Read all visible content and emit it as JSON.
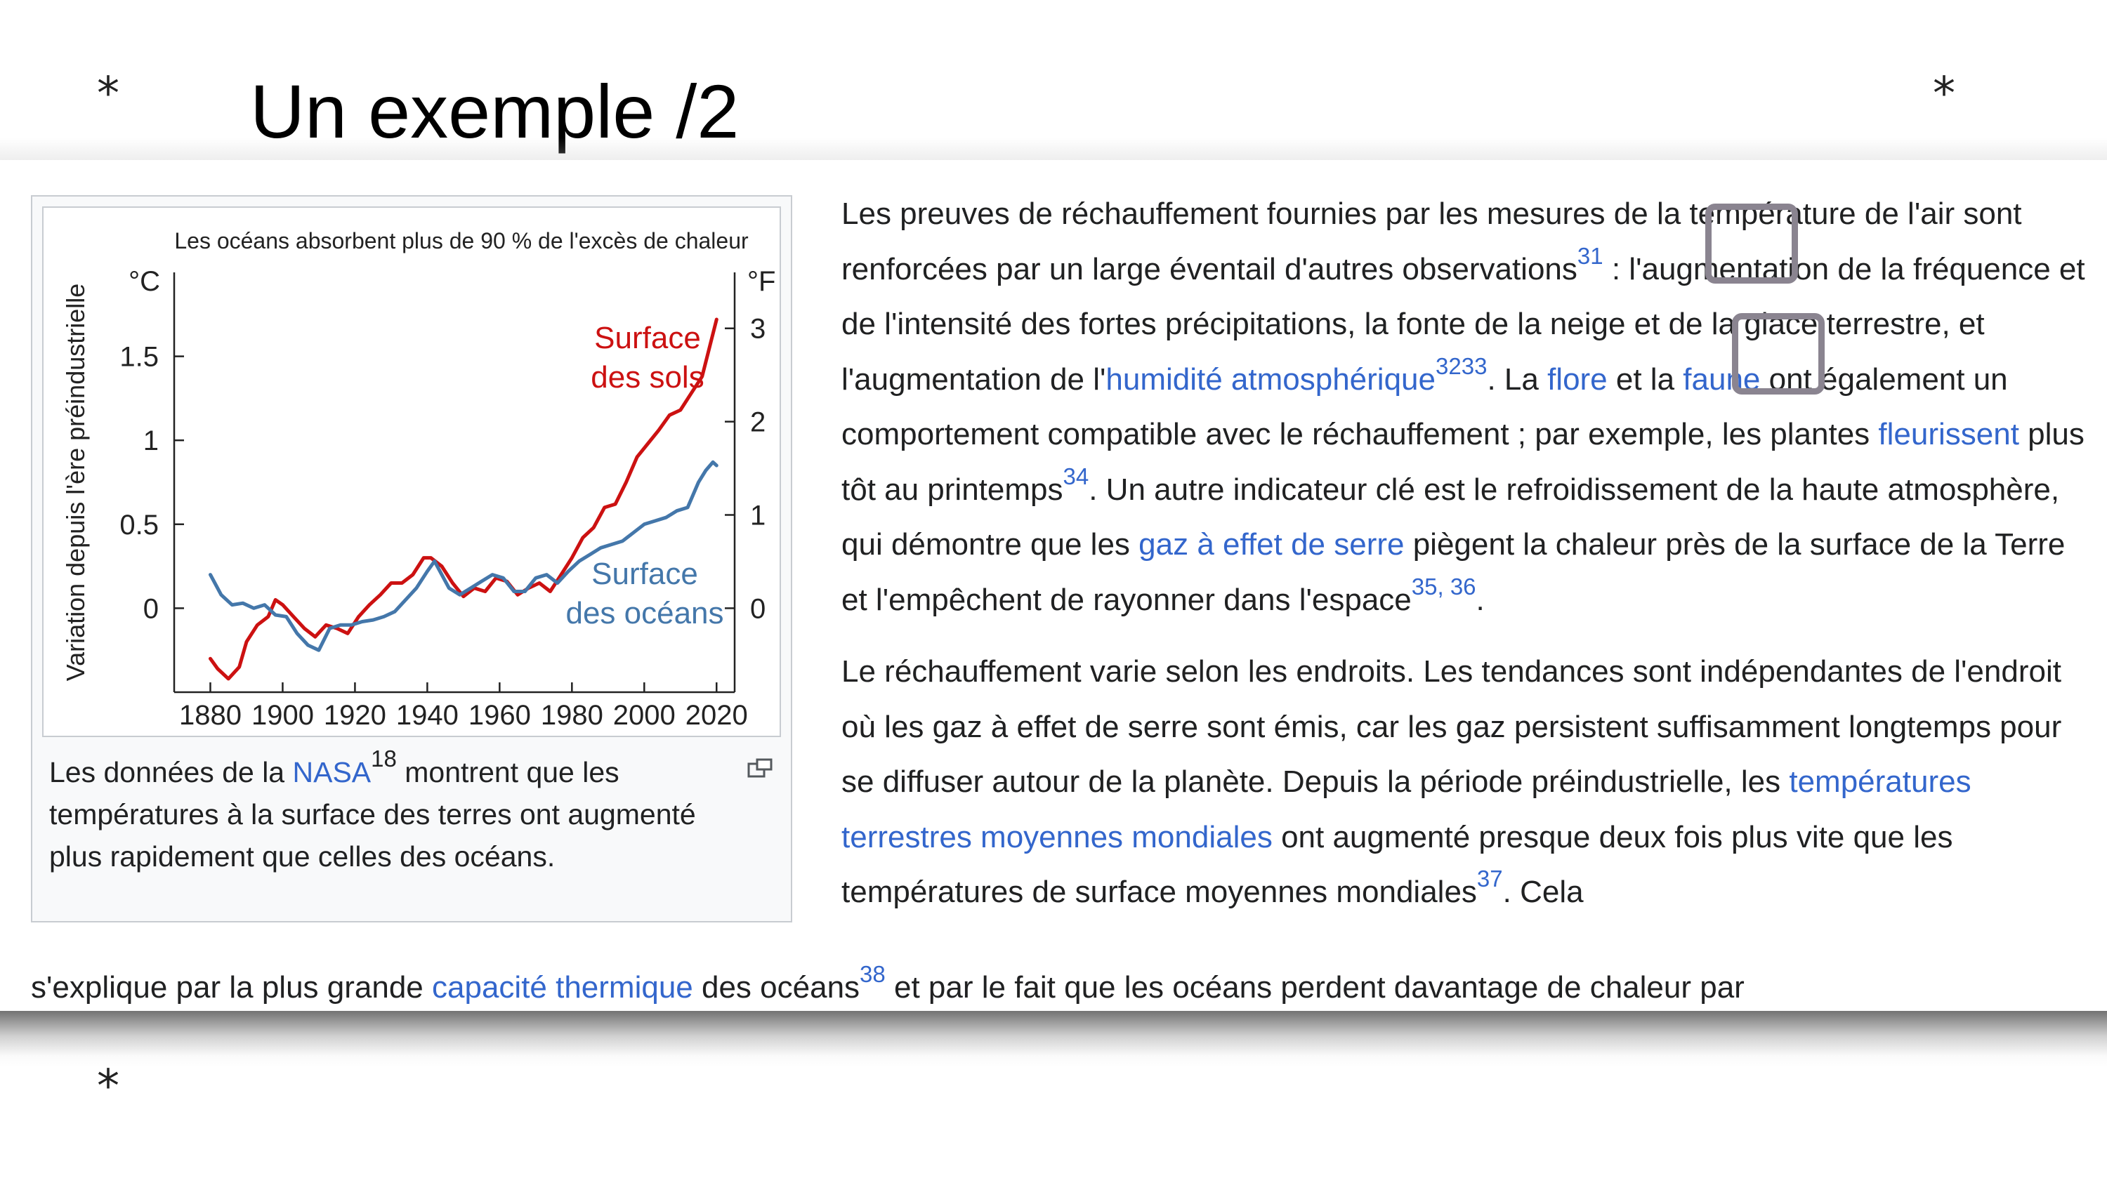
{
  "slide": {
    "title": "Un exemple /2",
    "star_glyph": "*"
  },
  "thumbnail": {
    "chart_data": {
      "type": "line",
      "title": "Les océans absorbent plus de 90 % de l'excès de chaleur",
      "xlabel": "",
      "ylabel": "Variation depuis l'ère préindustrielle",
      "y_unit_left": "°C",
      "y_unit_right": "°F",
      "xlim": [
        1870,
        2025
      ],
      "ylim": [
        -0.5,
        2.0
      ],
      "xticks": [
        "1880",
        "1900",
        "1920",
        "1940",
        "1960",
        "1980",
        "2000",
        "2020"
      ],
      "yticks_left": [
        "0",
        "0.5",
        "1",
        "1.5"
      ],
      "yticks_left_values": [
        0,
        0.5,
        1,
        1.5
      ],
      "yticks_right": [
        "0",
        "1",
        "2",
        "3"
      ],
      "yticks_right_values": [
        0,
        1,
        2,
        3
      ],
      "grid": false,
      "series": [
        {
          "name": "Surface des sols",
          "label_line1": "Surface",
          "label_line2": "des sols",
          "color": "#cc1111",
          "x": [
            1880,
            1882,
            1885,
            1888,
            1890,
            1893,
            1896,
            1898,
            1900,
            1903,
            1906,
            1909,
            1912,
            1915,
            1918,
            1921,
            1924,
            1927,
            1930,
            1933,
            1936,
            1939,
            1941,
            1944,
            1947,
            1950,
            1953,
            1956,
            1959,
            1962,
            1965,
            1968,
            1971,
            1974,
            1977,
            1980,
            1983,
            1986,
            1989,
            1992,
            1995,
            1998,
            2001,
            2004,
            2007,
            2010,
            2013,
            2016,
            2018,
            2020
          ],
          "values": [
            -0.3,
            -0.36,
            -0.42,
            -0.35,
            -0.2,
            -0.1,
            -0.05,
            0.05,
            0.02,
            -0.05,
            -0.12,
            -0.17,
            -0.1,
            -0.12,
            -0.15,
            -0.05,
            0.02,
            0.08,
            0.15,
            0.15,
            0.2,
            0.3,
            0.3,
            0.25,
            0.15,
            0.07,
            0.12,
            0.1,
            0.18,
            0.16,
            0.08,
            0.12,
            0.15,
            0.1,
            0.2,
            0.3,
            0.42,
            0.48,
            0.6,
            0.62,
            0.75,
            0.9,
            0.98,
            1.06,
            1.15,
            1.18,
            1.28,
            1.38,
            1.55,
            1.72
          ]
        },
        {
          "name": "Surface des océans",
          "label_line1": "Surface",
          "label_line2": "des océans",
          "color": "#4477aa",
          "x": [
            1880,
            1883,
            1886,
            1889,
            1892,
            1895,
            1898,
            1901,
            1904,
            1907,
            1910,
            1913,
            1916,
            1919,
            1922,
            1925,
            1928,
            1931,
            1934,
            1937,
            1940,
            1942,
            1944,
            1946,
            1949,
            1952,
            1955,
            1958,
            1961,
            1964,
            1967,
            1970,
            1973,
            1976,
            1979,
            1982,
            1985,
            1988,
            1991,
            1994,
            1997,
            2000,
            2003,
            2006,
            2009,
            2012,
            2015,
            2017,
            2019,
            2020
          ],
          "values": [
            0.2,
            0.08,
            0.02,
            0.03,
            0.0,
            0.02,
            -0.04,
            -0.05,
            -0.15,
            -0.22,
            -0.25,
            -0.12,
            -0.1,
            -0.1,
            -0.08,
            -0.07,
            -0.05,
            -0.02,
            0.05,
            0.12,
            0.22,
            0.28,
            0.2,
            0.12,
            0.08,
            0.12,
            0.16,
            0.2,
            0.18,
            0.1,
            0.1,
            0.18,
            0.2,
            0.15,
            0.22,
            0.28,
            0.32,
            0.36,
            0.38,
            0.4,
            0.45,
            0.5,
            0.52,
            0.54,
            0.58,
            0.6,
            0.75,
            0.82,
            0.87,
            0.85
          ]
        }
      ]
    },
    "caption": {
      "text1": "Les données de la ",
      "link_nasa": "NASA",
      "ref18": "18",
      "text2": " montrent que les températures à la surface des terres ont augmenté plus rapidement que celles des océans."
    }
  },
  "article": {
    "p1": {
      "t1": "Les preuves de réchauffement fournies par les mesures de la température de l'air sont renforcées par un large éventail d'autres observations",
      "ref31": "31",
      "t2": " : l'augmentation de la fréquence et de l'intensité des fortes précipitations, la fonte de la neige et de la glace terrestre, et l'augmentation de l'",
      "link_humidite": "humidité atmosphérique",
      "ref32": "32",
      "ref33": "33",
      "t3": ". La ",
      "link_flore": "flore",
      "t4": " et la ",
      "link_faune": "faune",
      "t5": " ont également un comportement compatible avec le réchauffement ; par exemple, les plantes ",
      "link_fleurissent": "fleurissent",
      "t6": " plus tôt au printemps",
      "ref34": "34",
      "t7": ". Un autre indicateur clé est le refroidissement de la haute atmosphère, qui démontre que les ",
      "link_gaz": "gaz à effet de serre",
      "t8": " piègent la chaleur près de la surface de la Terre et l'empêchent de rayonner dans l'espace",
      "ref35": "35",
      "ref_sep": ", ",
      "ref36": "36",
      "t9": "."
    },
    "p2": {
      "t1": "Le réchauffement varie selon les endroits. Les tendances sont indépendantes de l'endroit où les gaz à effet de serre sont émis, car les gaz persistent suffisamment longtemps pour se diffuser autour de la planète. Depuis la période préindustrielle, les ",
      "link_temperatures": "températures terrestres moyennes mondiales",
      "t2": " ont augmenté presque deux fois plus vite que les températures de surface moyennes mondiales",
      "ref37": "37",
      "t3": ". Cela"
    },
    "p3": {
      "t1": "s'explique par la plus grande ",
      "link_capacite": "capacité thermique",
      "t2": " des océans",
      "ref38": "38",
      "t3": " et par le fait que les océans perdent davantage de chaleur par"
    }
  },
  "colors": {
    "link": "#3366cc",
    "text": "#202122",
    "highlight_box": "#8a8490"
  }
}
